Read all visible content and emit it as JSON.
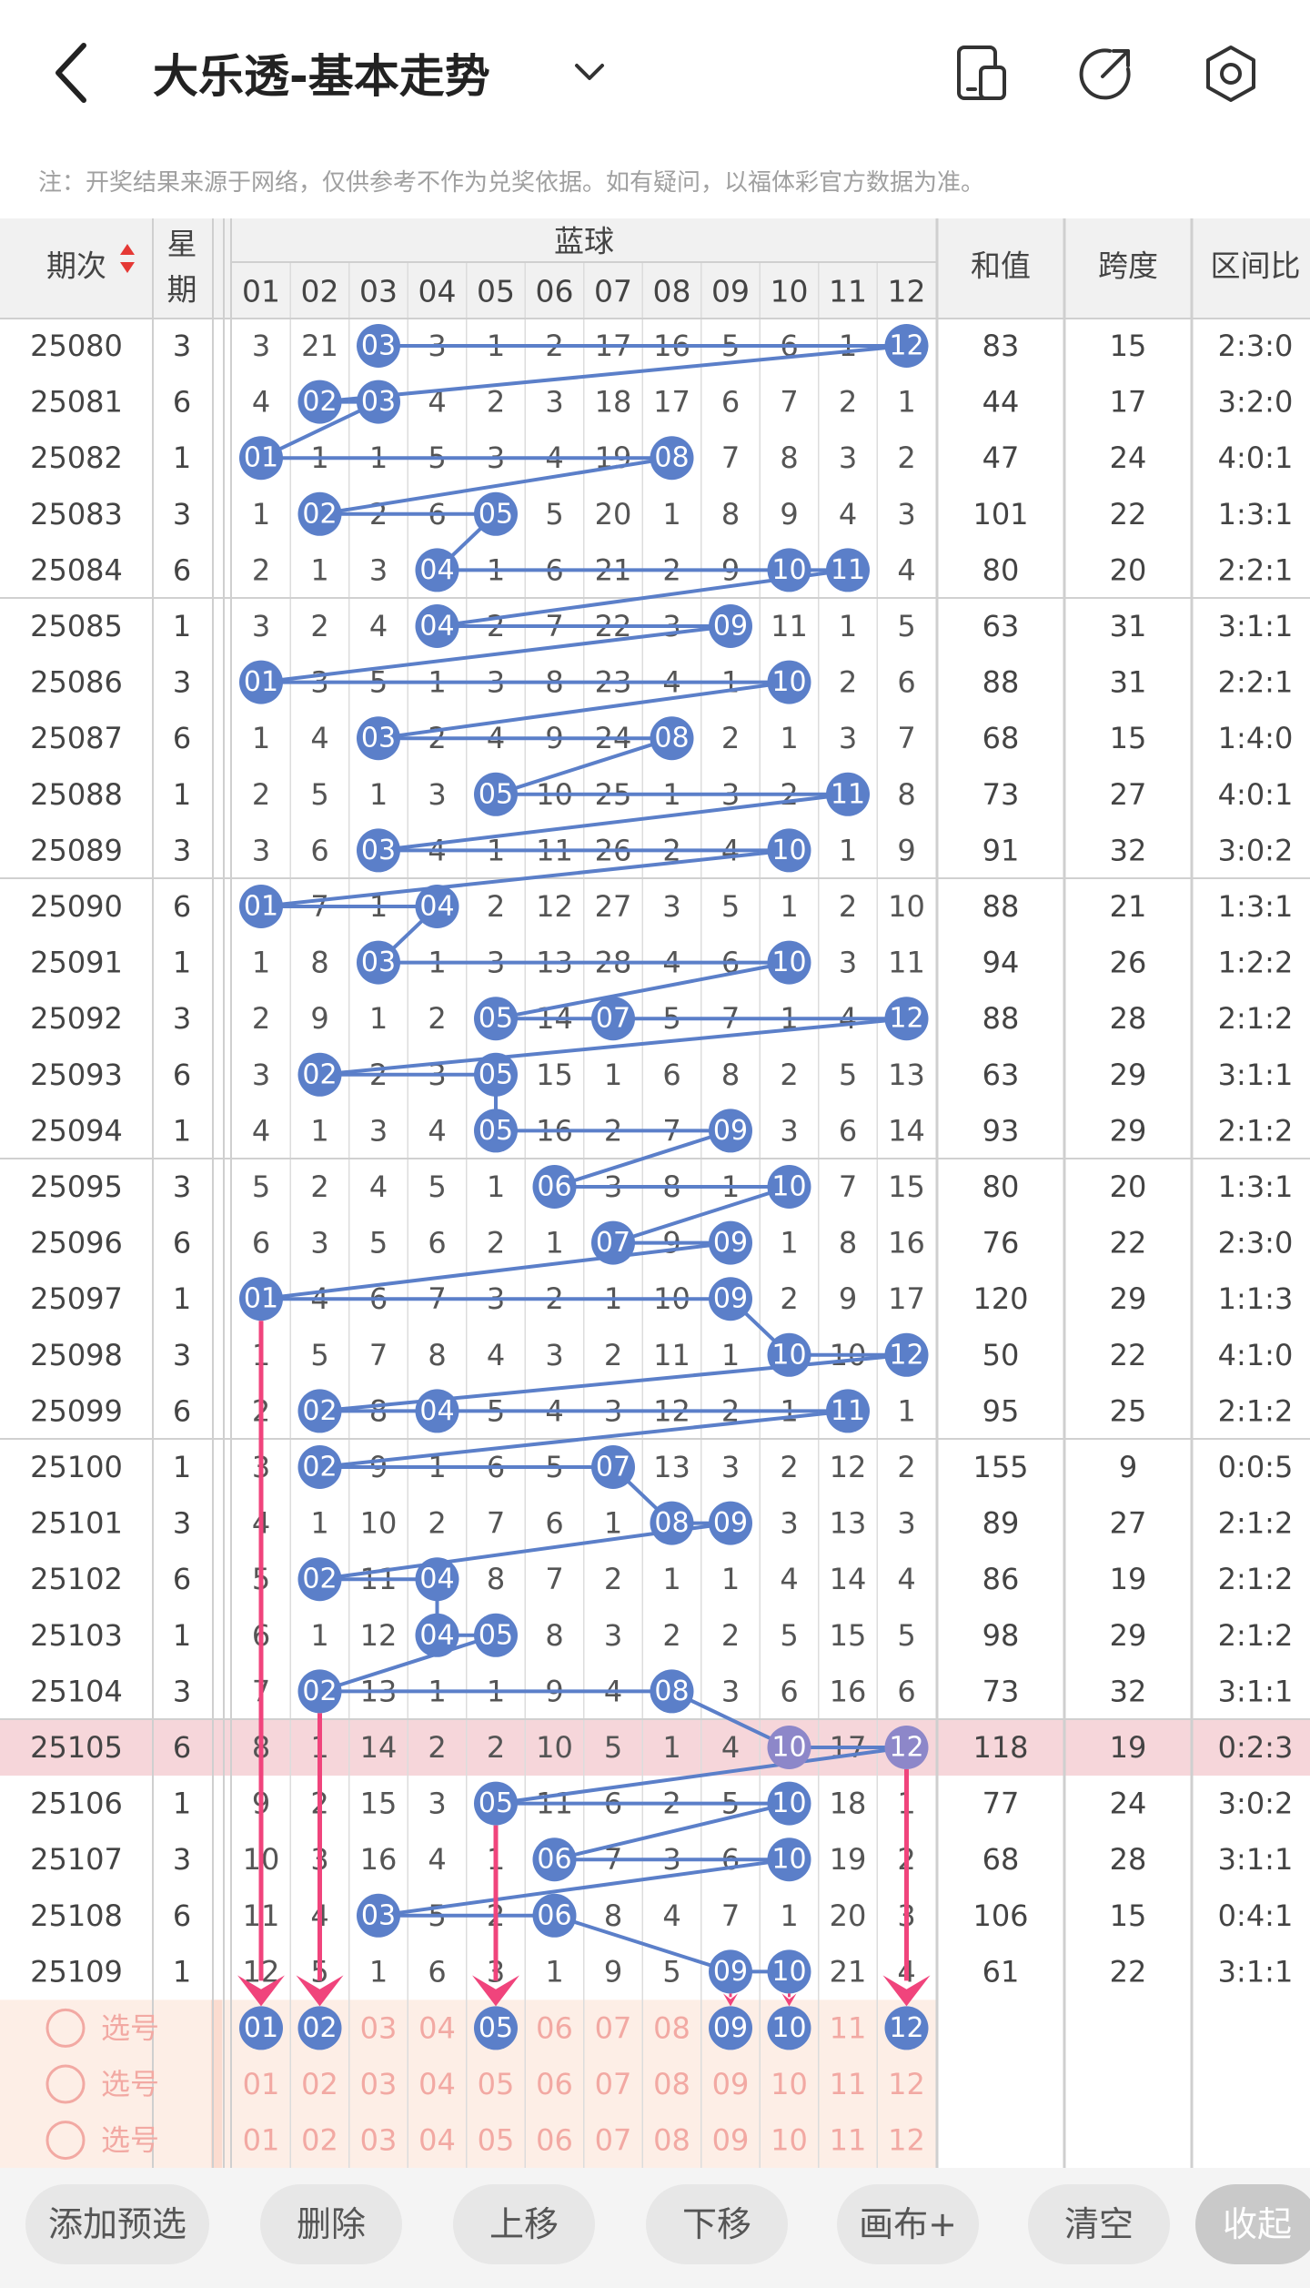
{
  "header": {
    "title": "大乐透-基本走势",
    "notice": "注：开奖结果来源于网络，仅供参考不作为兑奖依据。如有疑问，以福体彩官方数据为准。"
  },
  "table": {
    "col_period": "期次",
    "col_week": "星期",
    "group_label": "蓝球",
    "numbers": [
      "01",
      "02",
      "03",
      "04",
      "05",
      "06",
      "07",
      "08",
      "09",
      "10",
      "11",
      "12"
    ],
    "col_sum": "和值",
    "col_span": "跨度",
    "col_zone": "区间比",
    "rows": [
      {
        "period": "25080",
        "week": "3",
        "cells": [
          "3",
          "21",
          "03",
          "3",
          "1",
          "2",
          "17",
          "16",
          "5",
          "6",
          "1",
          "12"
        ],
        "sum": "83",
        "span": "15",
        "zone": "2:3:0"
      },
      {
        "period": "25081",
        "week": "6",
        "cells": [
          "4",
          "02",
          "03",
          "4",
          "2",
          "3",
          "18",
          "17",
          "6",
          "7",
          "2",
          "1"
        ],
        "sum": "44",
        "span": "17",
        "zone": "3:2:0"
      },
      {
        "period": "25082",
        "week": "1",
        "cells": [
          "01",
          "1",
          "1",
          "5",
          "3",
          "4",
          "19",
          "08",
          "7",
          "8",
          "3",
          "2"
        ],
        "sum": "47",
        "span": "24",
        "zone": "4:0:1"
      },
      {
        "period": "25083",
        "week": "3",
        "cells": [
          "1",
          "02",
          "2",
          "6",
          "05",
          "5",
          "20",
          "1",
          "8",
          "9",
          "4",
          "3"
        ],
        "sum": "101",
        "span": "22",
        "zone": "1:3:1"
      },
      {
        "period": "25084",
        "week": "6",
        "cells": [
          "2",
          "1",
          "3",
          "04",
          "1",
          "6",
          "21",
          "2",
          "9",
          "10",
          "11",
          "4"
        ],
        "sum": "80",
        "span": "20",
        "zone": "2:2:1"
      },
      {
        "period": "25085",
        "week": "1",
        "cells": [
          "3",
          "2",
          "4",
          "04",
          "2",
          "7",
          "22",
          "3",
          "09",
          "11",
          "1",
          "5"
        ],
        "sum": "63",
        "span": "31",
        "zone": "3:1:1"
      },
      {
        "period": "25086",
        "week": "3",
        "cells": [
          "01",
          "3",
          "5",
          "1",
          "3",
          "8",
          "23",
          "4",
          "1",
          "10",
          "2",
          "6"
        ],
        "sum": "88",
        "span": "31",
        "zone": "2:2:1"
      },
      {
        "period": "25087",
        "week": "6",
        "cells": [
          "1",
          "4",
          "03",
          "2",
          "4",
          "9",
          "24",
          "08",
          "2",
          "1",
          "3",
          "7"
        ],
        "sum": "68",
        "span": "15",
        "zone": "1:4:0"
      },
      {
        "period": "25088",
        "week": "1",
        "cells": [
          "2",
          "5",
          "1",
          "3",
          "05",
          "10",
          "25",
          "1",
          "3",
          "2",
          "11",
          "8"
        ],
        "sum": "73",
        "span": "27",
        "zone": "4:0:1"
      },
      {
        "period": "25089",
        "week": "3",
        "cells": [
          "3",
          "6",
          "03",
          "4",
          "1",
          "11",
          "26",
          "2",
          "4",
          "10",
          "1",
          "9"
        ],
        "sum": "91",
        "span": "32",
        "zone": "3:0:2"
      },
      {
        "period": "25090",
        "week": "6",
        "cells": [
          "01",
          "7",
          "1",
          "04",
          "2",
          "12",
          "27",
          "3",
          "5",
          "1",
          "2",
          "10"
        ],
        "sum": "88",
        "span": "21",
        "zone": "1:3:1"
      },
      {
        "period": "25091",
        "week": "1",
        "cells": [
          "1",
          "8",
          "03",
          "1",
          "3",
          "13",
          "28",
          "4",
          "6",
          "10",
          "3",
          "11"
        ],
        "sum": "94",
        "span": "26",
        "zone": "1:2:2"
      },
      {
        "period": "25092",
        "week": "3",
        "cells": [
          "2",
          "9",
          "1",
          "2",
          "05",
          "14",
          "07",
          "5",
          "7",
          "1",
          "4",
          "12"
        ],
        "sum": "88",
        "span": "28",
        "zone": "2:1:2"
      },
      {
        "period": "25093",
        "week": "6",
        "cells": [
          "3",
          "02",
          "2",
          "3",
          "05",
          "15",
          "1",
          "6",
          "8",
          "2",
          "5",
          "13"
        ],
        "sum": "63",
        "span": "29",
        "zone": "3:1:1"
      },
      {
        "period": "25094",
        "week": "1",
        "cells": [
          "4",
          "1",
          "3",
          "4",
          "05",
          "16",
          "2",
          "7",
          "09",
          "3",
          "6",
          "14"
        ],
        "sum": "93",
        "span": "29",
        "zone": "2:1:2"
      },
      {
        "period": "25095",
        "week": "3",
        "cells": [
          "5",
          "2",
          "4",
          "5",
          "1",
          "06",
          "3",
          "8",
          "1",
          "10",
          "7",
          "15"
        ],
        "sum": "80",
        "span": "20",
        "zone": "1:3:1"
      },
      {
        "period": "25096",
        "week": "6",
        "cells": [
          "6",
          "3",
          "5",
          "6",
          "2",
          "1",
          "07",
          "9",
          "09",
          "1",
          "8",
          "16"
        ],
        "sum": "76",
        "span": "22",
        "zone": "2:3:0"
      },
      {
        "period": "25097",
        "week": "1",
        "cells": [
          "01",
          "4",
          "6",
          "7",
          "3",
          "2",
          "1",
          "10",
          "09",
          "2",
          "9",
          "17"
        ],
        "sum": "120",
        "span": "29",
        "zone": "1:1:3"
      },
      {
        "period": "25098",
        "week": "3",
        "cells": [
          "1",
          "5",
          "7",
          "8",
          "4",
          "3",
          "2",
          "11",
          "1",
          "10",
          "10",
          "12"
        ],
        "sum": "50",
        "span": "22",
        "zone": "4:1:0"
      },
      {
        "period": "25099",
        "week": "6",
        "cells": [
          "2",
          "02",
          "8",
          "04",
          "5",
          "4",
          "3",
          "12",
          "2",
          "1",
          "11",
          "1"
        ],
        "sum": "95",
        "span": "25",
        "zone": "2:1:2"
      },
      {
        "period": "25100",
        "week": "1",
        "cells": [
          "3",
          "02",
          "9",
          "1",
          "6",
          "5",
          "07",
          "13",
          "3",
          "2",
          "12",
          "2"
        ],
        "sum": "155",
        "span": "9",
        "zone": "0:0:5"
      },
      {
        "period": "25101",
        "week": "3",
        "cells": [
          "4",
          "1",
          "10",
          "2",
          "7",
          "6",
          "1",
          "08",
          "09",
          "3",
          "13",
          "3"
        ],
        "sum": "89",
        "span": "27",
        "zone": "2:1:2"
      },
      {
        "period": "25102",
        "week": "6",
        "cells": [
          "5",
          "02",
          "11",
          "04",
          "8",
          "7",
          "2",
          "1",
          "1",
          "4",
          "14",
          "4"
        ],
        "sum": "86",
        "span": "19",
        "zone": "2:1:2"
      },
      {
        "period": "25103",
        "week": "1",
        "cells": [
          "6",
          "1",
          "12",
          "04",
          "05",
          "8",
          "3",
          "2",
          "2",
          "5",
          "15",
          "5"
        ],
        "sum": "98",
        "span": "29",
        "zone": "2:1:2"
      },
      {
        "period": "25104",
        "week": "3",
        "cells": [
          "7",
          "02",
          "13",
          "1",
          "1",
          "9",
          "4",
          "08",
          "3",
          "6",
          "16",
          "6"
        ],
        "sum": "73",
        "span": "32",
        "zone": "3:1:1"
      },
      {
        "period": "25105",
        "week": "6",
        "cells": [
          "8",
          "1",
          "14",
          "2",
          "2",
          "10",
          "5",
          "1",
          "4",
          "10",
          "17",
          "12"
        ],
        "sum": "118",
        "span": "19",
        "zone": "0:2:3"
      },
      {
        "period": "25106",
        "week": "1",
        "cells": [
          "9",
          "2",
          "15",
          "3",
          "05",
          "11",
          "6",
          "2",
          "5",
          "10",
          "18",
          "1"
        ],
        "sum": "77",
        "span": "24",
        "zone": "3:0:2"
      },
      {
        "period": "25107",
        "week": "3",
        "cells": [
          "10",
          "3",
          "16",
          "4",
          "1",
          "06",
          "7",
          "3",
          "6",
          "10",
          "19",
          "2"
        ],
        "sum": "68",
        "span": "28",
        "zone": "3:1:1"
      },
      {
        "period": "25108",
        "week": "6",
        "cells": [
          "11",
          "4",
          "03",
          "5",
          "2",
          "06",
          "8",
          "4",
          "7",
          "1",
          "20",
          "3"
        ],
        "sum": "106",
        "span": "15",
        "zone": "0:4:1"
      },
      {
        "period": "25109",
        "week": "1",
        "cells": [
          "12",
          "5",
          "1",
          "6",
          "3",
          "1",
          "9",
          "5",
          "09",
          "10",
          "21",
          "4"
        ],
        "sum": "61",
        "span": "22",
        "zone": "3:1:1"
      }
    ]
  },
  "selection": {
    "label": "选号",
    "rows": [
      {
        "label": "选号",
        "selected": [
          "01",
          "02",
          "05",
          "09",
          "10",
          "12"
        ]
      },
      {
        "label": "选号",
        "selected": []
      },
      {
        "label": "选号",
        "selected": []
      }
    ]
  },
  "bottom_bar": {
    "add": "添加预选",
    "delete": "删除",
    "up": "上移",
    "down": "下移",
    "canvas": "画布+",
    "clear": "清空",
    "collapse": "收起"
  },
  "colors": {
    "ball": "#5b7fc9",
    "line": "#5b7fc9",
    "arrow": "#f0447c",
    "highlight_row": "#f6d6da",
    "selection_bg": "#fdeee6",
    "selection_text": "#f2a9a3"
  }
}
